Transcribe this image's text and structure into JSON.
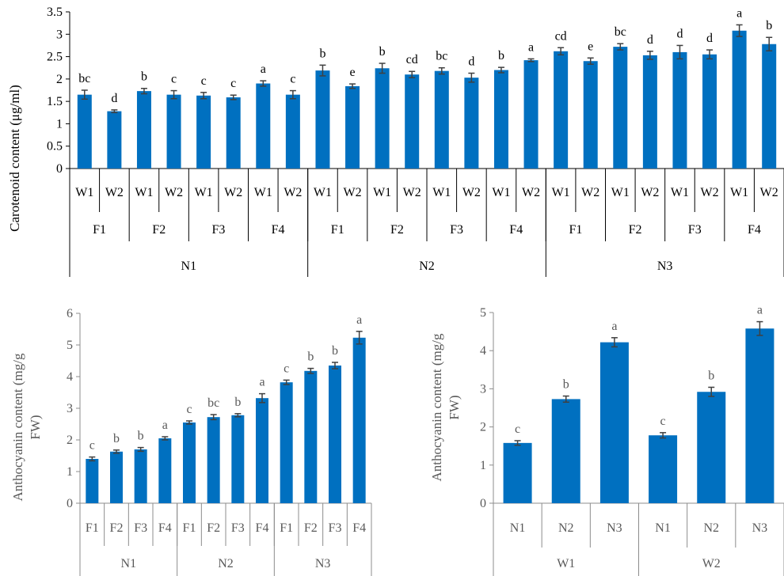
{
  "chart_data": [
    {
      "type": "bar",
      "ylabel": "Carotenoid content (μg/ml)",
      "ylim": [
        0,
        3.5
      ],
      "yticks": [
        "0",
        "0.5",
        "1",
        "1.5",
        "2",
        "2.5",
        "3",
        "3.5"
      ],
      "bar_color": "#0070c0",
      "categories": [
        "W1",
        "W2",
        "W1",
        "W2",
        "W1",
        "W2",
        "W1",
        "W2",
        "W1",
        "W2",
        "W1",
        "W2",
        "W1",
        "W2",
        "W1",
        "W2",
        "W1",
        "W2",
        "W1",
        "W2",
        "W1",
        "W2",
        "W1",
        "W2"
      ],
      "groups_level2": [
        "F1",
        "F2",
        "F3",
        "F4",
        "F1",
        "F2",
        "F3",
        "F4",
        "F1",
        "F2",
        "F3",
        "F4"
      ],
      "groups_level1": [
        "N1",
        "N2",
        "N3"
      ],
      "values": [
        1.65,
        1.28,
        1.73,
        1.65,
        1.63,
        1.59,
        1.9,
        1.65,
        2.19,
        1.84,
        2.24,
        2.1,
        2.18,
        2.03,
        2.2,
        2.42,
        2.62,
        2.4,
        2.72,
        2.53,
        2.6,
        2.55,
        3.08,
        2.78
      ],
      "errors": [
        0.1,
        0.03,
        0.06,
        0.09,
        0.07,
        0.05,
        0.06,
        0.09,
        0.12,
        0.05,
        0.11,
        0.07,
        0.07,
        0.1,
        0.06,
        0.03,
        0.08,
        0.07,
        0.07,
        0.09,
        0.15,
        0.1,
        0.13,
        0.15
      ],
      "labels": [
        "bc",
        "d",
        "b",
        "c",
        "c",
        "c",
        "a",
        "c",
        "b",
        "e",
        "b",
        "cd",
        "bc",
        "d",
        "b",
        "a",
        "cd",
        "e",
        "bc",
        "d",
        "d",
        "d",
        "a",
        "b"
      ]
    },
    {
      "type": "bar",
      "ylabel": "Anthocyanin content (mg/g FW)",
      "ylim": [
        0,
        6
      ],
      "yticks": [
        "0",
        "1",
        "2",
        "3",
        "4",
        "5",
        "6"
      ],
      "bar_color": "#0070c0",
      "categories": [
        "F1",
        "F2",
        "F3",
        "F4",
        "F1",
        "F2",
        "F3",
        "F4",
        "F1",
        "F2",
        "F3",
        "F4"
      ],
      "groups_level1": [
        "N1",
        "N2",
        "N3"
      ],
      "values": [
        1.4,
        1.63,
        1.7,
        2.05,
        2.55,
        2.72,
        2.78,
        3.32,
        3.82,
        4.18,
        4.35,
        5.23
      ],
      "errors": [
        0.06,
        0.05,
        0.06,
        0.05,
        0.05,
        0.08,
        0.05,
        0.14,
        0.07,
        0.08,
        0.1,
        0.2
      ],
      "labels": [
        "c",
        "b",
        "b",
        "a",
        "c",
        "bc",
        "b",
        "a",
        "c",
        "b",
        "b",
        "a"
      ]
    },
    {
      "type": "bar",
      "ylabel": "Anthocyanin content (mg/g FW)",
      "ylim": [
        0,
        5
      ],
      "yticks": [
        "0",
        "1",
        "2",
        "3",
        "4",
        "5"
      ],
      "bar_color": "#0070c0",
      "categories": [
        "N1",
        "N2",
        "N3",
        "N1",
        "N2",
        "N3"
      ],
      "groups_level1": [
        "W1",
        "W2"
      ],
      "values": [
        1.58,
        2.73,
        4.22,
        1.78,
        2.92,
        4.58
      ],
      "errors": [
        0.06,
        0.08,
        0.12,
        0.07,
        0.12,
        0.18
      ],
      "labels": [
        "c",
        "b",
        "a",
        "c",
        "b",
        "a"
      ]
    }
  ]
}
